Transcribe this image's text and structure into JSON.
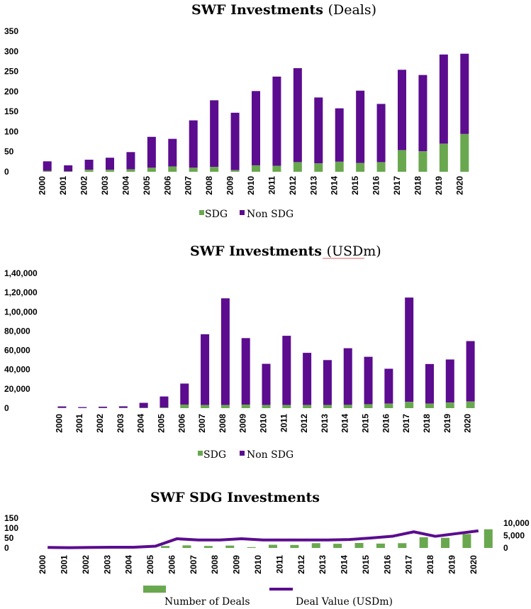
{
  "colors": {
    "sdg": "#6aa84f",
    "non_sdg": "#5b0c8f",
    "line": "#5b0c8f",
    "underline": "#e06060"
  },
  "chart_data": [
    {
      "type": "bar",
      "stacked": true,
      "title_bold": "SWF Investments",
      "title_rest": "(Deals)",
      "categories": [
        "2000",
        "2001",
        "2002",
        "2003",
        "2004",
        "2005",
        "2006",
        "2007",
        "2008",
        "2009",
        "2010",
        "2011",
        "2012",
        "2013",
        "2014",
        "2015",
        "2016",
        "2017",
        "2018",
        "2019",
        "2020"
      ],
      "series": [
        {
          "name": "SDG",
          "values": [
            2,
            1,
            5,
            5,
            6,
            10,
            13,
            10,
            12,
            4,
            16,
            15,
            24,
            21,
            25,
            22,
            24,
            54,
            51,
            70,
            94
          ]
        },
        {
          "name": "Non SDG",
          "values": [
            24,
            15,
            25,
            30,
            43,
            77,
            69,
            118,
            166,
            143,
            185,
            222,
            234,
            164,
            133,
            180,
            145,
            200,
            190,
            222,
            200
          ]
        }
      ],
      "ylim": [
        0,
        350
      ],
      "yticks": [
        "0",
        "50",
        "100",
        "150",
        "200",
        "250",
        "300",
        "350"
      ],
      "legend": [
        "SDG",
        "Non SDG"
      ],
      "xlabel": "",
      "ylabel": ""
    },
    {
      "type": "bar",
      "stacked": true,
      "title_bold": "SWF Investments",
      "title_rest": "(USDm)",
      "categories": [
        "2000",
        "2001",
        "2002",
        "2003",
        "2004",
        "2005",
        "2006",
        "2007",
        "2008",
        "2009",
        "2010",
        "2011",
        "2012",
        "2013",
        "2014",
        "2015",
        "2016",
        "2017",
        "2018",
        "2019",
        "2020"
      ],
      "series": [
        {
          "name": "SDG",
          "values": [
            200,
            100,
            200,
            300,
            300,
            700,
            3700,
            3200,
            3200,
            3700,
            3200,
            3200,
            3200,
            3200,
            3400,
            4000,
            4700,
            6500,
            4700,
            5800,
            6900
          ]
        },
        {
          "name": "Non SDG",
          "values": [
            1600,
            1000,
            1300,
            1600,
            5200,
            11400,
            21800,
            73500,
            110800,
            69000,
            42800,
            71900,
            54200,
            46700,
            58800,
            49300,
            36200,
            108300,
            41100,
            44700,
            62700
          ]
        }
      ],
      "ylim": [
        0,
        140000
      ],
      "yticks": [
        "0",
        "20,000",
        "40,000",
        "60,000",
        "80,000",
        "1,00,000",
        "1,20,000",
        "1,40,000"
      ],
      "legend": [
        "SDG",
        "Non SDG"
      ],
      "xlabel": "",
      "ylabel": ""
    },
    {
      "type": "bar",
      "title": "SWF SDG Investments",
      "categories": [
        "2000",
        "2001",
        "2002",
        "2003",
        "2004",
        "2005",
        "2006",
        "2007",
        "2008",
        "2009",
        "2010",
        "2011",
        "2012",
        "2013",
        "2014",
        "2015",
        "2016",
        "2017",
        "2018",
        "2019",
        "2020"
      ],
      "bar_series": {
        "name": "Number of Deals",
        "values": [
          2,
          1,
          5,
          5,
          6,
          10,
          13,
          10,
          12,
          4,
          16,
          15,
          24,
          21,
          25,
          22,
          24,
          54,
          51,
          70,
          94
        ]
      },
      "line_series": {
        "name": "Deal Value (USDm)",
        "values": [
          200,
          100,
          200,
          300,
          300,
          700,
          3700,
          3200,
          3200,
          3700,
          3200,
          3200,
          3200,
          3200,
          3400,
          4000,
          4700,
          6500,
          4700,
          5800,
          6900
        ]
      },
      "ylim_left": [
        0,
        150
      ],
      "ylim_right": [
        0,
        10000
      ],
      "yticks_left": [
        "0",
        "50",
        "100",
        "150"
      ],
      "yticks_right": [
        "0",
        "5,000",
        "10,000"
      ],
      "legend": [
        "Number of Deals",
        "Deal Value (USDm)"
      ]
    }
  ]
}
